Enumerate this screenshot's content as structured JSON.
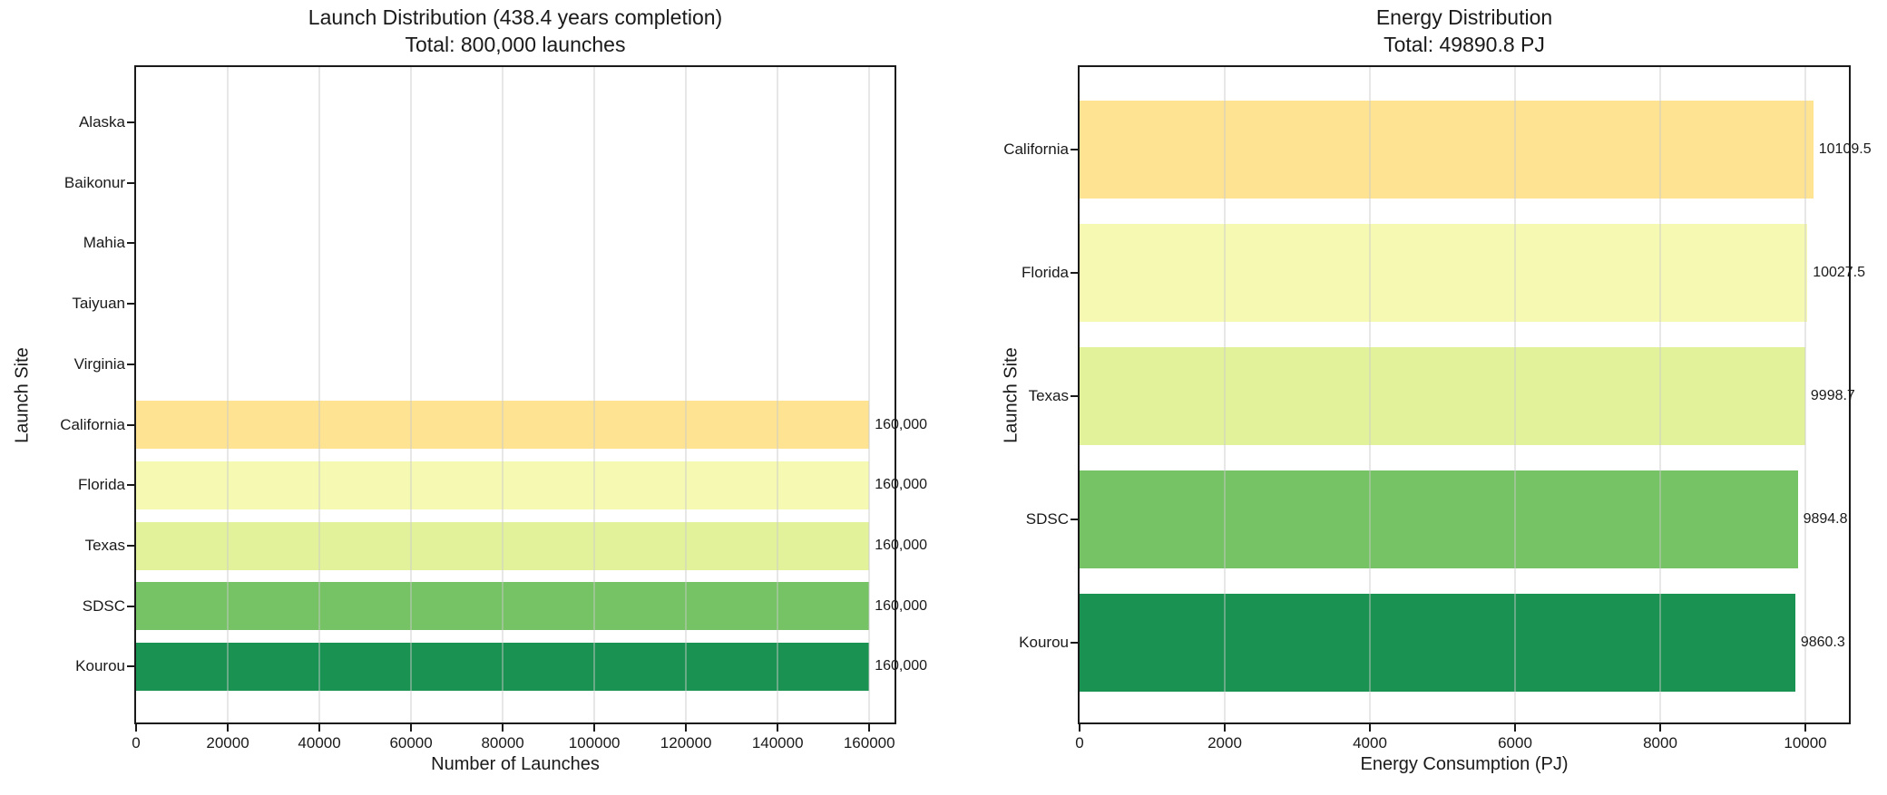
{
  "figure": {
    "background": "#ffffff",
    "text_color": "#1a1a1a",
    "spine_color": "#1a1a1a",
    "grid_color": "#e8e8e8"
  },
  "chart_data": [
    {
      "type": "bar",
      "orientation": "horizontal",
      "title": "Launch Distribution (438.4 years completion)",
      "subtitle": "Total: 800,000 launches",
      "xlabel": "Number of Launches",
      "ylabel": "Launch Site",
      "xlim": [
        0,
        165500
      ],
      "grid": true,
      "legend": null,
      "xticks": [
        {
          "value": 0,
          "label": "0"
        },
        {
          "value": 20000,
          "label": "20000"
        },
        {
          "value": 40000,
          "label": "40000"
        },
        {
          "value": 60000,
          "label": "60000"
        },
        {
          "value": 80000,
          "label": "80000"
        },
        {
          "value": 100000,
          "label": "100000"
        },
        {
          "value": 120000,
          "label": "120000"
        },
        {
          "value": 140000,
          "label": "140000"
        },
        {
          "value": 160000,
          "label": "160000"
        }
      ],
      "rows": [
        {
          "category": "Alaska",
          "value": 0,
          "label": "",
          "color": null
        },
        {
          "category": "Baikonur",
          "value": 0,
          "label": "",
          "color": null
        },
        {
          "category": "Mahia",
          "value": 0,
          "label": "",
          "color": null
        },
        {
          "category": "Taiyuan",
          "value": 0,
          "label": "",
          "color": null
        },
        {
          "category": "Virginia",
          "value": 0,
          "label": "",
          "color": null
        },
        {
          "category": "California",
          "value": 160000,
          "label": "160,000",
          "color": "#fde392"
        },
        {
          "category": "Florida",
          "value": 160000,
          "label": "160,000",
          "color": "#f5f9b2"
        },
        {
          "category": "Texas",
          "value": 160000,
          "label": "160,000",
          "color": "#e2f29b"
        },
        {
          "category": "SDSC",
          "value": 160000,
          "label": "160,000",
          "color": "#76c365"
        },
        {
          "category": "Kourou",
          "value": 160000,
          "label": "160,000",
          "color": "#1a9251"
        }
      ]
    },
    {
      "type": "bar",
      "orientation": "horizontal",
      "title": "Energy Distribution",
      "subtitle": "Total: 49890.8 PJ",
      "xlabel": "Energy Consumption (PJ)",
      "ylabel": "Launch Site",
      "xlim": [
        0,
        10600
      ],
      "grid": true,
      "legend": null,
      "xticks": [
        {
          "value": 0,
          "label": "0"
        },
        {
          "value": 2000,
          "label": "2000"
        },
        {
          "value": 4000,
          "label": "4000"
        },
        {
          "value": 6000,
          "label": "6000"
        },
        {
          "value": 8000,
          "label": "8000"
        },
        {
          "value": 10000,
          "label": "10000"
        }
      ],
      "rows": [
        {
          "category": "California",
          "value": 10109.5,
          "label": "10109.5",
          "color": "#fde392"
        },
        {
          "category": "Florida",
          "value": 10027.5,
          "label": "10027.5",
          "color": "#f5f9b2"
        },
        {
          "category": "Texas",
          "value": 9998.7,
          "label": "9998.7",
          "color": "#e2f29b"
        },
        {
          "category": "SDSC",
          "value": 9894.8,
          "label": "9894.8",
          "color": "#76c365"
        },
        {
          "category": "Kourou",
          "value": 9860.3,
          "label": "9860.3",
          "color": "#1a9251"
        }
      ]
    }
  ]
}
